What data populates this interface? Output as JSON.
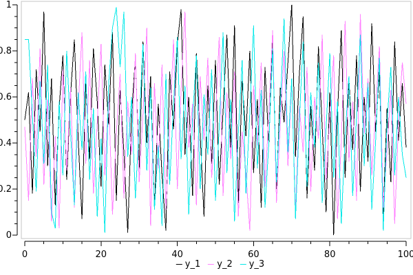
{
  "window": {
    "background": "#ffffff"
  },
  "chart_data": {
    "type": "line",
    "title": "",
    "xlabel": "",
    "ylabel": "",
    "xlim": [
      0,
      100
    ],
    "ylim": [
      0,
      1
    ],
    "grid": false,
    "legend_position": "bottom-center",
    "axis_color": "#000000",
    "frame_color": "#c4c4c4",
    "xticks": {
      "values": [
        0,
        20,
        40,
        60,
        80,
        100
      ],
      "labels": [
        "0",
        "20",
        "40",
        "60",
        "80",
        "100"
      ],
      "minor_divisions": 4
    },
    "yticks": {
      "values": [
        0,
        0.2,
        0.4,
        0.6,
        0.8,
        1
      ],
      "labels": [
        "0",
        "0.2",
        "0.4",
        "0.6",
        "0.8",
        "1"
      ],
      "minor_divisions": 4
    },
    "x": {
      "start": 0,
      "step": 1,
      "count": 101
    },
    "series": [
      {
        "name": "y_1",
        "color": "#000000",
        "values": [
          0.5,
          0.62,
          0.18,
          0.72,
          0.45,
          0.97,
          0.3,
          0.68,
          0.13,
          0.55,
          0.78,
          0.24,
          0.61,
          0.85,
          0.42,
          0.07,
          0.66,
          0.33,
          0.81,
          0.58,
          0.21,
          0.74,
          0.48,
          0.88,
          0.15,
          0.63,
          0.36,
          0.01,
          0.52,
          0.77,
          0.29,
          0.84,
          0.4,
          0.69,
          0.11,
          0.57,
          0.26,
          0.02,
          0.71,
          0.46,
          0.83,
          0.98,
          0.35,
          0.6,
          0.17,
          0.79,
          0.44,
          0.08,
          0.65,
          0.31,
          0.76,
          0.22,
          0.54,
          0.87,
          0.38,
          0.91,
          0.14,
          0.67,
          0.43,
          0.8,
          0.27,
          0.59,
          0.12,
          0.73,
          0.39,
          0.86,
          0.2,
          0.64,
          0.49,
          0.75,
          1.0,
          0.34,
          0.7,
          0.95,
          0.16,
          0.56,
          0.28,
          0.82,
          0.47,
          0.1,
          0.62,
          0.0,
          0.53,
          0.89,
          0.25,
          0.68,
          0.37,
          0.78,
          0.19,
          0.6,
          0.32,
          0.92,
          0.45,
          0.71,
          0.09,
          0.55,
          0.23,
          0.84,
          0.41,
          0.66,
          0.38
        ]
      },
      {
        "name": "y_2",
        "color": "#ff80ff",
        "values": [
          0.47,
          0.15,
          0.68,
          0.34,
          0.81,
          0.22,
          0.59,
          0.06,
          0.43,
          0.03,
          0.72,
          0.28,
          0.64,
          0.12,
          0.55,
          0.88,
          0.31,
          0.76,
          0.18,
          0.49,
          0.83,
          0.26,
          0.61,
          0.09,
          0.44,
          0.7,
          0.16,
          0.58,
          0.35,
          0.79,
          0.23,
          0.52,
          0.9,
          0.04,
          0.66,
          0.29,
          0.74,
          0.11,
          0.46,
          0.85,
          0.2,
          0.63,
          0.97,
          0.38,
          0.57,
          0.13,
          0.69,
          0.41,
          0.77,
          0.25,
          0.5,
          0.86,
          0.17,
          0.62,
          0.33,
          0.71,
          0.08,
          0.45,
          0.27,
          0.02,
          0.65,
          0.39,
          0.75,
          0.21,
          0.53,
          0.89,
          0.14,
          0.48,
          0.8,
          0.3,
          0.67,
          0.1,
          0.56,
          0.36,
          0.73,
          0.19,
          0.6,
          0.42,
          0.87,
          0.24,
          0.51,
          0.78,
          0.07,
          0.4,
          0.93,
          0.32,
          0.58,
          0.15,
          0.96,
          0.44,
          0.68,
          0.26,
          0.54,
          0.82,
          0.12,
          0.37,
          0.63,
          0.05,
          0.49,
          0.75,
          0.57
        ]
      },
      {
        "name": "y_3",
        "color": "#00e8e8",
        "values": [
          0.85,
          0.85,
          0.52,
          0.19,
          0.67,
          0.31,
          0.74,
          0.1,
          0.03,
          0.58,
          0.26,
          0.8,
          0.45,
          0.13,
          0.62,
          0.37,
          0.71,
          0.24,
          0.55,
          0.08,
          0.42,
          0.01,
          0.66,
          0.9,
          0.99,
          0.73,
          0.97,
          0.34,
          0.6,
          0.16,
          0.48,
          0.83,
          0.28,
          0.64,
          0.11,
          0.39,
          0.04,
          0.7,
          0.22,
          0.57,
          0.86,
          0.33,
          0.65,
          0.09,
          0.51,
          0.78,
          0.2,
          0.61,
          0.35,
          0.72,
          0.15,
          0.47,
          0.88,
          0.27,
          0.59,
          0.06,
          0.44,
          0.76,
          0.18,
          0.53,
          0.91,
          0.29,
          0.63,
          0.12,
          0.4,
          0.81,
          0.23,
          0.56,
          0.94,
          0.36,
          0.68,
          0.07,
          0.5,
          0.84,
          0.21,
          0.62,
          0.38,
          0.75,
          0.14,
          0.46,
          0.79,
          0.25,
          0.58,
          0.05,
          0.43,
          0.69,
          0.17,
          0.52,
          0.87,
          0.3,
          0.66,
          0.11,
          0.41,
          0.77,
          0.02,
          0.49,
          0.73,
          0.26,
          0.6,
          0.35,
          0.25
        ]
      }
    ]
  }
}
